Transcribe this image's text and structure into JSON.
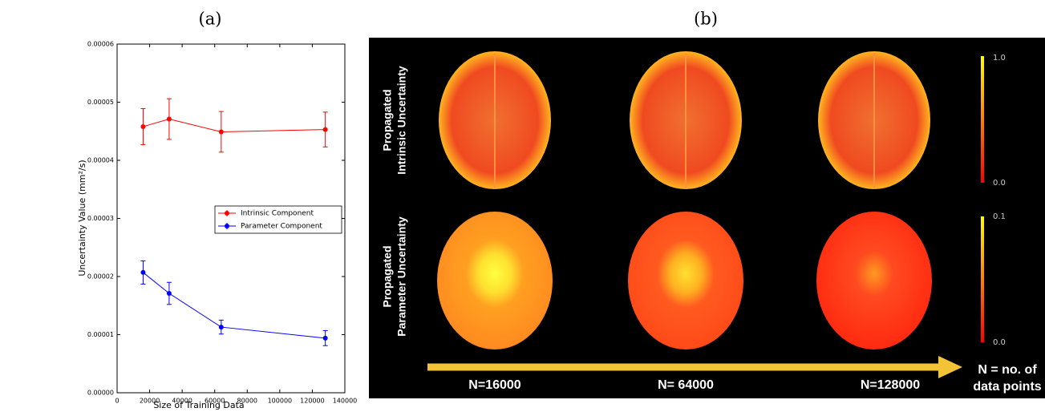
{
  "chart_data": {
    "type": "line",
    "panel_label": "(a)",
    "x_label": "Size of Training Data",
    "y_label": "Uncertainty Value (mm²/s)",
    "xlim": [
      0,
      140000
    ],
    "xticks": [
      0,
      20000,
      40000,
      60000,
      80000,
      100000,
      120000,
      140000
    ],
    "ylim": [
      0,
      6e-05
    ],
    "yticks": [
      {
        "value": 0,
        "label": "0.00000"
      },
      {
        "value": 1e-05,
        "label": "0.00001"
      },
      {
        "value": 2e-05,
        "label": "0.00002"
      },
      {
        "value": 3e-05,
        "label": "0.00003"
      },
      {
        "value": 4e-05,
        "label": "0.00004"
      },
      {
        "value": 5e-05,
        "label": "0.00005"
      },
      {
        "value": 6e-05,
        "label": "0.00006"
      }
    ],
    "legend": "center right",
    "x": [
      16000,
      32000,
      64000,
      128000
    ],
    "series": [
      {
        "name": "Intrinsic Component",
        "color": "#ff0000",
        "values": [
          4.58e-05,
          4.71e-05,
          4.49e-05,
          4.53e-05
        ],
        "errors": [
          3.1e-06,
          3.5e-06,
          3.5e-06,
          3e-06
        ]
      },
      {
        "name": "Parameter Component",
        "color": "#0000ff",
        "values": [
          2.07e-05,
          1.71e-05,
          1.13e-05,
          9.4e-06
        ],
        "errors": [
          2e-06,
          1.9e-06,
          1.2e-06,
          1.3e-06
        ]
      }
    ]
  },
  "panel_b": {
    "panel_label": "(b)",
    "row_labels": [
      [
        "Propagated",
        "Intrinsic Uncertainty"
      ],
      [
        "Propagated",
        "Parameter Uncertainty"
      ]
    ],
    "colorbars": [
      {
        "max": "1.0",
        "min": "0.0"
      },
      {
        "max": "0.1",
        "min": "0.0"
      }
    ],
    "columns": [
      "N=16000",
      "N= 64000",
      "N=128000"
    ],
    "arrow_label": [
      "N = no. of",
      "data points"
    ]
  }
}
